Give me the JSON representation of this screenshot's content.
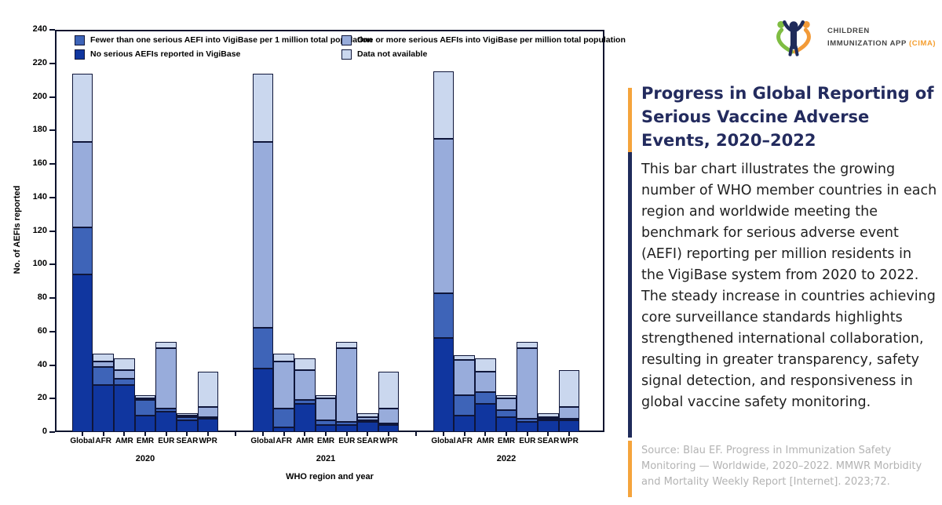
{
  "logo": {
    "line1": "CHILDREN",
    "line2": "IMMUNIZATION APP",
    "line2_highlight": "(CIMA)",
    "accent_orange": "#f59e2e",
    "accent_green": "#7fbd42",
    "accent_navy": "#1f2b5b"
  },
  "panel": {
    "title": "Progress in Global Reporting of Serious Vaccine Adverse Events, 2020–2022",
    "body": "This bar chart illustrates the growing number of WHO member countries in each region and worldwide meeting the benchmark for serious adverse event (AEFI) reporting per million residents in the VigiBase system from 2020 to 2022. The steady increase in countries achieving core surveillance standards highlights strengthened international collaboration, resulting in greater transparency, safety signal detection, and responsiveness in global vaccine safety monitoring.",
    "source": "Source: Blau EF. Progress in Immunization Safety Monitoring — Worldwide, 2020–2022. MMWR Morbidity and Mortality Weekly Report [Internet]. 2023;72."
  },
  "chart_data": {
    "type": "bar",
    "stacked": true,
    "title": "",
    "xlabel": "WHO region and year",
    "ylabel": "No. of AEFIs reported",
    "ylim": [
      0,
      240
    ],
    "ytick_step": 20,
    "grid": false,
    "legend_position": "top-inside",
    "groups": [
      "2020",
      "2021",
      "2022"
    ],
    "categories": [
      "Global",
      "AFR",
      "AMR",
      "EMR",
      "EUR",
      "SEAR",
      "WPR"
    ],
    "series": [
      {
        "key": "no_serious",
        "name": "No serious AEFIs reported in VigiBase",
        "color": "#10369f",
        "values": {
          "2020": [
            94,
            28,
            28,
            10,
            12,
            7,
            8
          ],
          "2021": [
            38,
            3,
            17,
            4,
            4,
            6,
            4
          ],
          "2022": [
            56,
            10,
            17,
            9,
            6,
            7,
            7
          ]
        }
      },
      {
        "key": "fewer_than_one",
        "name": "Fewer than one serious AEFI into VigiBase per 1 million total population",
        "color": "#3e64b8",
        "values": {
          "2020": [
            28,
            11,
            4,
            9,
            2,
            2,
            1
          ],
          "2021": [
            24,
            11,
            2,
            3,
            2,
            1,
            1
          ],
          "2022": [
            27,
            12,
            7,
            4,
            2,
            1,
            1
          ]
        }
      },
      {
        "key": "one_or_more",
        "name": "One or more serious AEFIs into VigiBase per million total population",
        "color": "#98acdb",
        "values": {
          "2020": [
            51,
            3,
            5,
            1,
            36,
            1,
            6
          ],
          "2021": [
            111,
            28,
            18,
            13,
            44,
            2,
            9
          ],
          "2022": [
            92,
            21,
            12,
            7,
            42,
            1,
            7
          ]
        }
      },
      {
        "key": "data_not_available",
        "name": "Data not available",
        "color": "#cad7ee",
        "values": {
          "2020": [
            41,
            5,
            7,
            2,
            4,
            1,
            21
          ],
          "2021": [
            41,
            5,
            7,
            2,
            4,
            2,
            22
          ],
          "2022": [
            40,
            3,
            8,
            2,
            4,
            2,
            22
          ]
        }
      }
    ],
    "group_totals": {
      "2020": [
        214,
        47,
        44,
        22,
        54,
        11,
        36
      ],
      "2021": [
        214,
        47,
        44,
        22,
        54,
        11,
        36
      ],
      "2022": [
        215,
        46,
        44,
        22,
        54,
        11,
        37
      ]
    },
    "legend_order": [
      1,
      2,
      0,
      3
    ]
  }
}
